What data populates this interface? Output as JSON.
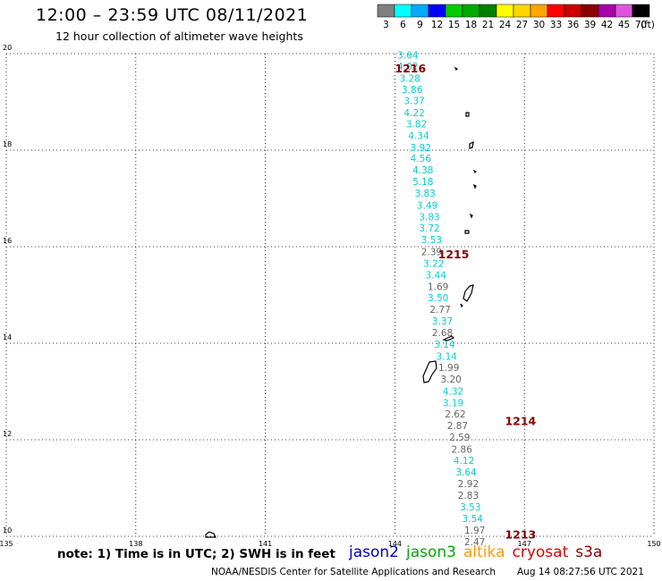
{
  "header": {
    "title": "12:00 – 23:59 UTC 08/11/2021",
    "subtitle": "12 hour collection of altimeter wave heights"
  },
  "legend": {
    "unit_label": "(ft)",
    "bins": [
      {
        "label": "3",
        "color": "#808080"
      },
      {
        "label": "6",
        "color": "#00ffff"
      },
      {
        "label": "9",
        "color": "#00aaff"
      },
      {
        "label": "12",
        "color": "#0000ff"
      },
      {
        "label": "15",
        "color": "#00cc00"
      },
      {
        "label": "18",
        "color": "#00aa00"
      },
      {
        "label": "21",
        "color": "#008000"
      },
      {
        "label": "24",
        "color": "#ffff00"
      },
      {
        "label": "27",
        "color": "#ffd700"
      },
      {
        "label": "30",
        "color": "#ffa500"
      },
      {
        "label": "33",
        "color": "#ff0000"
      },
      {
        "label": "36",
        "color": "#cc0000"
      },
      {
        "label": "39",
        "color": "#8b0000"
      },
      {
        "label": "42",
        "color": "#aa00aa"
      },
      {
        "label": "45",
        "color": "#dd55dd"
      },
      {
        "label": "70",
        "color": "#000000"
      }
    ]
  },
  "map": {
    "lon_range": [
      135,
      150
    ],
    "lat_range": [
      10,
      20
    ],
    "lon_ticks": [
      "135",
      "138",
      "141",
      "144",
      "147",
      "150"
    ],
    "lat_ticks": [
      "20",
      "18",
      "16",
      "14",
      "12",
      "10"
    ],
    "grid": true
  },
  "passes": [
    {
      "label": "1216",
      "lon": 144.0,
      "lat": 19.7
    },
    {
      "label": "1215",
      "lon": 145.0,
      "lat": 15.85
    },
    {
      "label": "1214",
      "lon": 146.55,
      "lat": 12.4
    },
    {
      "label": "1213",
      "lon": 146.55,
      "lat": 10.05
    }
  ],
  "observations": [
    {
      "value": "3.64",
      "lon": 144.3,
      "lat": 19.97,
      "sat": "jason3"
    },
    {
      "value": "4.02",
      "lon": 144.3,
      "lat": 19.74,
      "sat": "jason3"
    },
    {
      "value": "3.28",
      "lon": 144.35,
      "lat": 19.49,
      "sat": "jason3"
    },
    {
      "value": "3.86",
      "lon": 144.4,
      "lat": 19.26,
      "sat": "jason3"
    },
    {
      "value": "3.37",
      "lon": 144.45,
      "lat": 19.03,
      "sat": "jason3"
    },
    {
      "value": "4.22",
      "lon": 144.45,
      "lat": 18.78,
      "sat": "jason3"
    },
    {
      "value": "3.82",
      "lon": 144.5,
      "lat": 18.55,
      "sat": "jason3"
    },
    {
      "value": "4.34",
      "lon": 144.55,
      "lat": 18.31,
      "sat": "jason3"
    },
    {
      "value": "3.92",
      "lon": 144.6,
      "lat": 18.06,
      "sat": "jason3"
    },
    {
      "value": "4.56",
      "lon": 144.6,
      "lat": 17.83,
      "sat": "jason3"
    },
    {
      "value": "4.38",
      "lon": 144.65,
      "lat": 17.59,
      "sat": "jason3"
    },
    {
      "value": "5.18",
      "lon": 144.65,
      "lat": 17.35,
      "sat": "jason3"
    },
    {
      "value": "3.83",
      "lon": 144.7,
      "lat": 17.11,
      "sat": "jason3"
    },
    {
      "value": "3.49",
      "lon": 144.75,
      "lat": 16.86,
      "sat": "jason3"
    },
    {
      "value": "3.83",
      "lon": 144.8,
      "lat": 16.62,
      "sat": "jason3"
    },
    {
      "value": "3.72",
      "lon": 144.8,
      "lat": 16.39,
      "sat": "jason3"
    },
    {
      "value": "3.53",
      "lon": 144.85,
      "lat": 16.15,
      "sat": "jason3"
    },
    {
      "value": "2.39",
      "lon": 144.85,
      "lat": 15.9,
      "sat": "altika"
    },
    {
      "value": "3.22",
      "lon": 144.9,
      "lat": 15.66,
      "sat": "jason3"
    },
    {
      "value": "3.44",
      "lon": 144.95,
      "lat": 15.42,
      "sat": "jason3"
    },
    {
      "value": "1.69",
      "lon": 145.0,
      "lat": 15.18,
      "sat": "altika"
    },
    {
      "value": "3.50",
      "lon": 145.0,
      "lat": 14.94,
      "sat": "jason3"
    },
    {
      "value": "2.77",
      "lon": 145.05,
      "lat": 14.7,
      "sat": "altika"
    },
    {
      "value": "3.37",
      "lon": 145.1,
      "lat": 14.46,
      "sat": "jason3"
    },
    {
      "value": "2.68",
      "lon": 145.1,
      "lat": 14.22,
      "sat": "altika"
    },
    {
      "value": "3.14",
      "lon": 145.15,
      "lat": 13.98,
      "sat": "jason3"
    },
    {
      "value": "3.14",
      "lon": 145.2,
      "lat": 13.73,
      "sat": "jason3"
    },
    {
      "value": "1.99",
      "lon": 145.25,
      "lat": 13.5,
      "sat": "altika"
    },
    {
      "value": "3.20",
      "lon": 145.3,
      "lat": 13.26,
      "sat": "altika"
    },
    {
      "value": "4.32",
      "lon": 145.35,
      "lat": 13.01,
      "sat": "jason3"
    },
    {
      "value": "3.19",
      "lon": 145.35,
      "lat": 12.77,
      "sat": "jason3"
    },
    {
      "value": "2.62",
      "lon": 145.4,
      "lat": 12.54,
      "sat": "altika"
    },
    {
      "value": "2.87",
      "lon": 145.45,
      "lat": 12.3,
      "sat": "altika"
    },
    {
      "value": "2.59",
      "lon": 145.5,
      "lat": 12.06,
      "sat": "altika"
    },
    {
      "value": "2.86",
      "lon": 145.55,
      "lat": 11.81,
      "sat": "altika"
    },
    {
      "value": "4.12",
      "lon": 145.6,
      "lat": 11.57,
      "sat": "jason3"
    },
    {
      "value": "3.64",
      "lon": 145.65,
      "lat": 11.33,
      "sat": "jason3"
    },
    {
      "value": "2.92",
      "lon": 145.7,
      "lat": 11.09,
      "sat": "altika"
    },
    {
      "value": "2.83",
      "lon": 145.7,
      "lat": 10.85,
      "sat": "altika"
    },
    {
      "value": "3.53",
      "lon": 145.75,
      "lat": 10.61,
      "sat": "jason3"
    },
    {
      "value": "3.54",
      "lon": 145.8,
      "lat": 10.37,
      "sat": "jason3"
    },
    {
      "value": "1.97",
      "lon": 145.85,
      "lat": 10.13,
      "sat": "altika"
    },
    {
      "value": "2.47",
      "lon": 145.85,
      "lat": 9.89,
      "sat": "altika"
    }
  ],
  "sat_colors": {
    "jason3": "#00d0d0",
    "altika": "#666666"
  },
  "footer": {
    "note": "note:  1) Time is in UTC;  2) SWH is in feet",
    "satellites": [
      {
        "name": "jason2",
        "color": "#0000cc"
      },
      {
        "name": "jason3",
        "color": "#00aa00"
      },
      {
        "name": "altika",
        "color": "#ff9900"
      },
      {
        "name": "cryosat",
        "color": "#dd0000"
      },
      {
        "name": "s3a",
        "color": "#8b0000"
      }
    ],
    "credit": "NOAA/NESDIS Center for Satellite Applications and Research",
    "timestamp": "Aug 14 08:27:56 UTC 2021"
  }
}
